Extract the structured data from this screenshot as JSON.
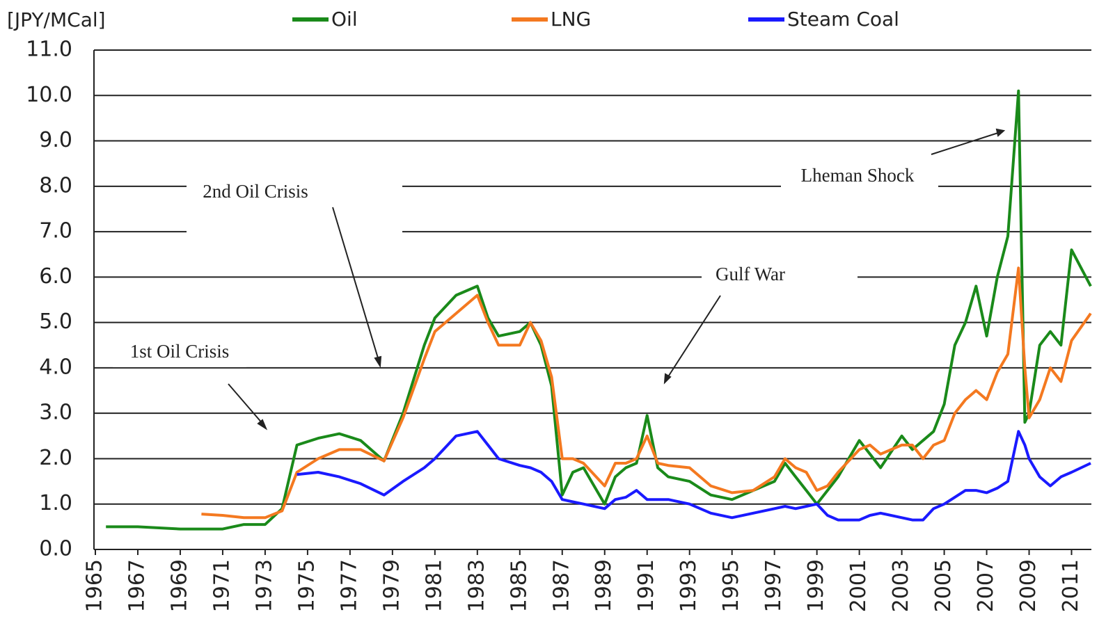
{
  "chart_data": {
    "type": "line",
    "y_label": "[JPY/MCal]",
    "x": [
      1965.5,
      1967,
      1969,
      1970,
      1971,
      1972,
      1973,
      1973.8,
      1974.5,
      1975.5,
      1976.5,
      1977.5,
      1978.6,
      1979.5,
      1980.5,
      1981,
      1982,
      1983,
      1983.5,
      1984,
      1985,
      1985.5,
      1986,
      1986.5,
      1987,
      1987.5,
      1988,
      1989,
      1989.5,
      1990,
      1990.5,
      1991,
      1991.5,
      1992,
      1993,
      1994,
      1995,
      1996,
      1997,
      1997.5,
      1998,
      1998.5,
      1999,
      1999.5,
      2000,
      2001,
      2001.5,
      2002,
      2003,
      2003.5,
      2004,
      2004.5,
      2005,
      2005.5,
      2006,
      2006.5,
      2007,
      2007.5,
      2008,
      2008.5,
      2008.8,
      2009,
      2009.5,
      2010,
      2010.5,
      2011,
      2011.9
    ],
    "series": [
      {
        "name": "Oil",
        "color": "#1a8a1a",
        "values": [
          0.5,
          0.5,
          0.45,
          0.45,
          0.45,
          0.55,
          0.55,
          0.9,
          2.3,
          2.45,
          2.55,
          2.4,
          1.95,
          3.0,
          4.5,
          5.1,
          5.6,
          5.8,
          5.1,
          4.7,
          4.8,
          5.0,
          4.5,
          3.6,
          1.2,
          1.7,
          1.8,
          1.0,
          1.6,
          1.8,
          1.9,
          2.95,
          1.8,
          1.6,
          1.5,
          1.2,
          1.1,
          1.3,
          1.5,
          1.9,
          1.6,
          1.3,
          1.0,
          1.3,
          1.6,
          2.4,
          2.1,
          1.8,
          2.5,
          2.2,
          2.4,
          2.6,
          3.2,
          4.5,
          5.0,
          5.8,
          4.7,
          6.0,
          6.9,
          10.1,
          2.8,
          3.0,
          4.5,
          4.8,
          4.5,
          6.6,
          5.8
        ]
      },
      {
        "name": "LNG",
        "color": "#f47920",
        "values": [
          null,
          null,
          null,
          0.78,
          0.75,
          0.7,
          0.7,
          0.85,
          1.7,
          2.0,
          2.2,
          2.2,
          1.95,
          2.9,
          4.2,
          4.8,
          5.2,
          5.6,
          5.0,
          4.5,
          4.5,
          5.0,
          4.6,
          3.8,
          2.0,
          2.0,
          1.9,
          1.4,
          1.9,
          1.9,
          2.0,
          2.5,
          1.9,
          1.85,
          1.8,
          1.4,
          1.25,
          1.3,
          1.6,
          2.0,
          1.8,
          1.7,
          1.3,
          1.4,
          1.7,
          2.2,
          2.3,
          2.1,
          2.3,
          2.3,
          2.0,
          2.3,
          2.4,
          3.0,
          3.3,
          3.5,
          3.3,
          3.9,
          4.3,
          6.2,
          4.0,
          2.9,
          3.3,
          4.0,
          3.7,
          4.6,
          5.2
        ]
      },
      {
        "name": "Steam Coal",
        "color": "#1a1aff",
        "values": [
          null,
          null,
          null,
          null,
          null,
          null,
          null,
          null,
          1.65,
          1.7,
          1.6,
          1.45,
          1.2,
          1.5,
          1.8,
          2.0,
          2.5,
          2.6,
          2.3,
          2.0,
          1.85,
          1.8,
          1.7,
          1.5,
          1.1,
          1.05,
          1.0,
          0.9,
          1.1,
          1.15,
          1.3,
          1.1,
          1.1,
          1.1,
          1.0,
          0.8,
          0.7,
          0.8,
          0.9,
          0.95,
          0.9,
          0.95,
          1.0,
          0.75,
          0.65,
          0.65,
          0.75,
          0.8,
          0.7,
          0.65,
          0.65,
          0.9,
          1.0,
          1.15,
          1.3,
          1.3,
          1.25,
          1.35,
          1.5,
          2.6,
          2.3,
          2.0,
          1.6,
          1.4,
          1.6,
          1.7,
          1.9
        ]
      }
    ],
    "xlim": [
      1965,
      2012
    ],
    "xticks": [
      1965,
      1967,
      1969,
      1971,
      1973,
      1975,
      1977,
      1979,
      1981,
      1983,
      1985,
      1987,
      1989,
      1991,
      1993,
      1995,
      1997,
      1999,
      2001,
      2003,
      2005,
      2007,
      2009,
      2011
    ],
    "ylim": [
      0,
      11
    ],
    "yticks": [
      {
        "value": 0,
        "label": "0.0"
      },
      {
        "value": 1,
        "label": "1.0"
      },
      {
        "value": 2,
        "label": "2.0"
      },
      {
        "value": 3,
        "label": "3.0"
      },
      {
        "value": 4,
        "label": "4.0"
      },
      {
        "value": 5,
        "label": "5.0"
      },
      {
        "value": 6,
        "label": "6.0"
      },
      {
        "value": 7,
        "label": "7.0"
      },
      {
        "value": 8,
        "label": "8.0"
      },
      {
        "value": 9,
        "label": "9.0"
      },
      {
        "value": 10,
        "label": "10.0"
      },
      {
        "value": 11,
        "label": "11.0"
      }
    ],
    "grid": true,
    "legend": "top",
    "annotations": [
      "1st Oil Crisis",
      "2nd Oil Crisis",
      "Gulf War",
      "Lheman Shock"
    ]
  }
}
